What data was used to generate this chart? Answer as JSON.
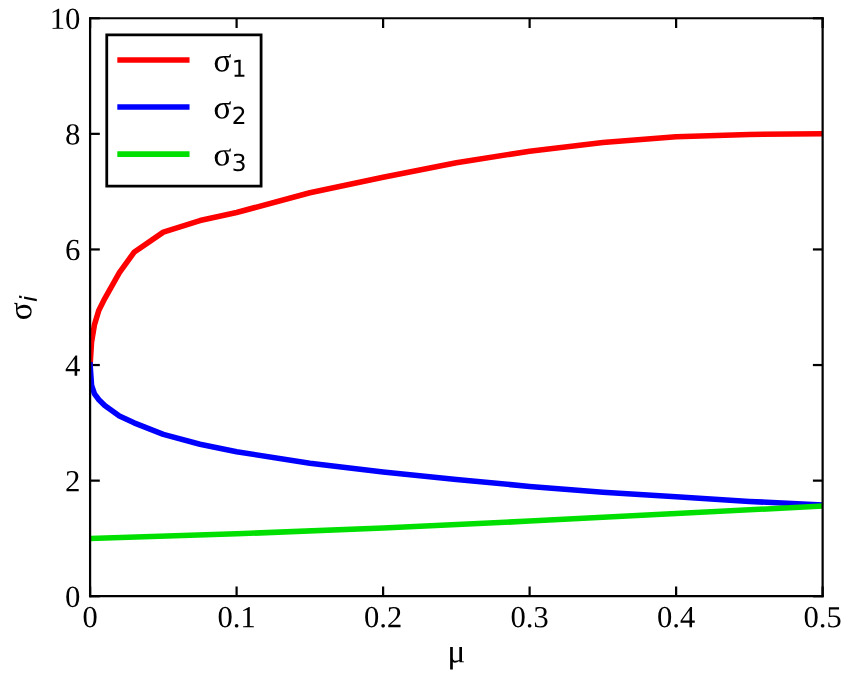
{
  "chart_data": {
    "type": "line",
    "xlabel": "μ",
    "ylabel": "σ$_{i}$",
    "xlim": [
      0,
      0.5
    ],
    "ylim": [
      0,
      10
    ],
    "xticks": [
      0,
      0.1,
      0.2,
      0.3,
      0.4,
      0.5
    ],
    "yticks": [
      0,
      2,
      4,
      6,
      8,
      10
    ],
    "grid": false,
    "legend": "top left",
    "marker": "none",
    "line_style": "solid",
    "series": [
      {
        "name": "σ$_{1}$",
        "color": "#ff0000",
        "x": [
          0,
          0.001,
          0.003,
          0.006,
          0.01,
          0.02,
          0.03,
          0.05,
          0.075,
          0.1,
          0.15,
          0.2,
          0.25,
          0.3,
          0.35,
          0.4,
          0.45,
          0.5
        ],
        "values": [
          4.0,
          4.4,
          4.7,
          4.95,
          5.15,
          5.6,
          5.95,
          6.3,
          6.5,
          6.64,
          6.98,
          7.25,
          7.5,
          7.7,
          7.85,
          7.95,
          7.99,
          8.0
        ]
      },
      {
        "name": "σ$_{2}$",
        "color": "#0000ff",
        "x": [
          0,
          0.001,
          0.003,
          0.006,
          0.01,
          0.02,
          0.03,
          0.05,
          0.075,
          0.1,
          0.15,
          0.2,
          0.25,
          0.3,
          0.35,
          0.4,
          0.45,
          0.5
        ],
        "values": [
          4.0,
          3.65,
          3.5,
          3.4,
          3.3,
          3.12,
          3.0,
          2.8,
          2.63,
          2.5,
          2.3,
          2.15,
          2.02,
          1.9,
          1.8,
          1.72,
          1.64,
          1.58
        ]
      },
      {
        "name": "σ$_{3}$",
        "color": "#00e000",
        "x": [
          0,
          0.1,
          0.2,
          0.3,
          0.4,
          0.5
        ],
        "values": [
          1.0,
          1.08,
          1.18,
          1.3,
          1.43,
          1.56
        ]
      }
    ]
  }
}
